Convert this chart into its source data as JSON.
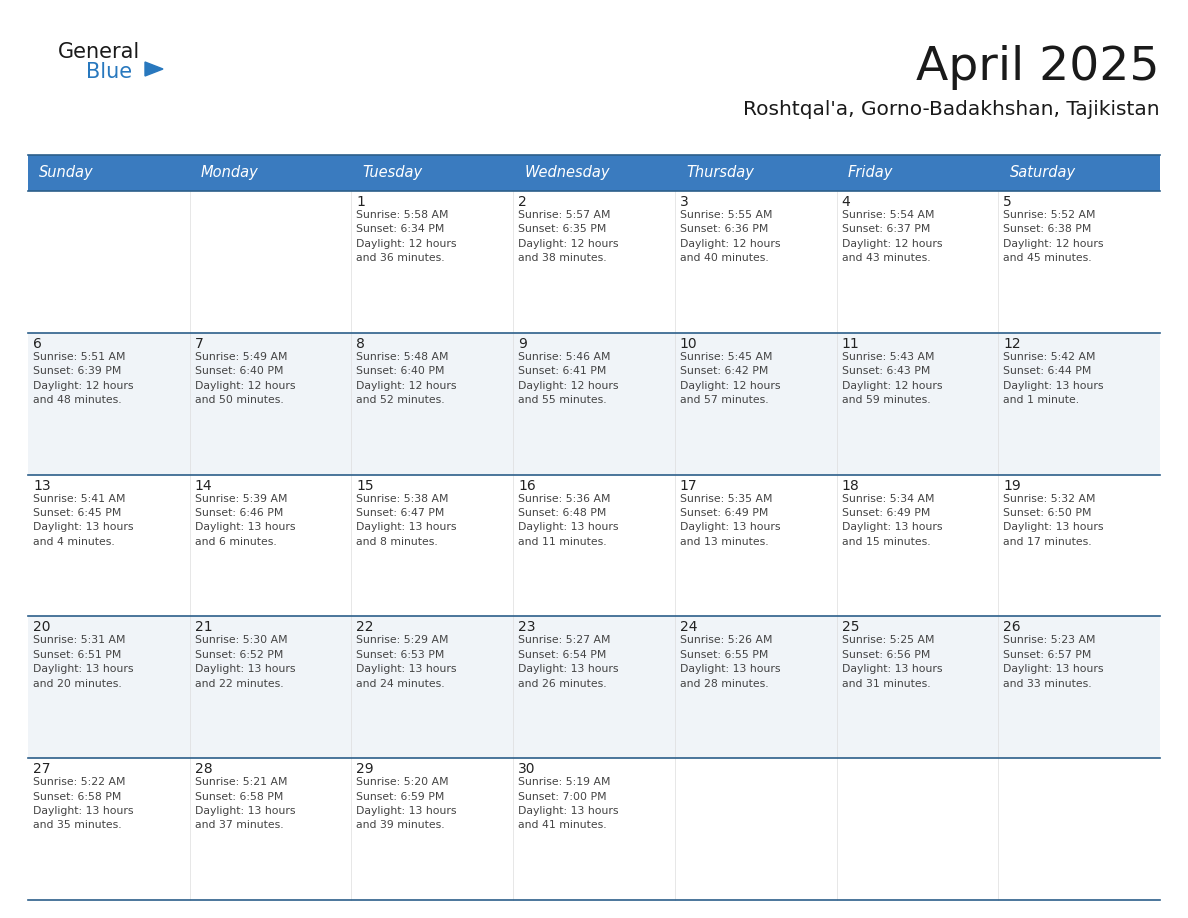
{
  "title": "April 2025",
  "subtitle": "Roshtqal'a, Gorno-Badakhshan, Tajikistan",
  "days_of_week": [
    "Sunday",
    "Monday",
    "Tuesday",
    "Wednesday",
    "Thursday",
    "Friday",
    "Saturday"
  ],
  "header_bg": "#3a7bbf",
  "header_fg": "#ffffff",
  "row_bg_colors": [
    "#ffffff",
    "#f0f4f8",
    "#ffffff",
    "#f0f4f8",
    "#ffffff"
  ],
  "separator_color": "#2c5f8a",
  "title_color": "#1a1a1a",
  "subtitle_color": "#1a1a1a",
  "day_num_color": "#222222",
  "cell_text_color": "#444444",
  "logo_general_color": "#1a1a1a",
  "logo_blue_color": "#2878be",
  "calendar_data": [
    [
      {
        "day": null,
        "info": null
      },
      {
        "day": null,
        "info": null
      },
      {
        "day": 1,
        "info": "Sunrise: 5:58 AM\nSunset: 6:34 PM\nDaylight: 12 hours\nand 36 minutes."
      },
      {
        "day": 2,
        "info": "Sunrise: 5:57 AM\nSunset: 6:35 PM\nDaylight: 12 hours\nand 38 minutes."
      },
      {
        "day": 3,
        "info": "Sunrise: 5:55 AM\nSunset: 6:36 PM\nDaylight: 12 hours\nand 40 minutes."
      },
      {
        "day": 4,
        "info": "Sunrise: 5:54 AM\nSunset: 6:37 PM\nDaylight: 12 hours\nand 43 minutes."
      },
      {
        "day": 5,
        "info": "Sunrise: 5:52 AM\nSunset: 6:38 PM\nDaylight: 12 hours\nand 45 minutes."
      }
    ],
    [
      {
        "day": 6,
        "info": "Sunrise: 5:51 AM\nSunset: 6:39 PM\nDaylight: 12 hours\nand 48 minutes."
      },
      {
        "day": 7,
        "info": "Sunrise: 5:49 AM\nSunset: 6:40 PM\nDaylight: 12 hours\nand 50 minutes."
      },
      {
        "day": 8,
        "info": "Sunrise: 5:48 AM\nSunset: 6:40 PM\nDaylight: 12 hours\nand 52 minutes."
      },
      {
        "day": 9,
        "info": "Sunrise: 5:46 AM\nSunset: 6:41 PM\nDaylight: 12 hours\nand 55 minutes."
      },
      {
        "day": 10,
        "info": "Sunrise: 5:45 AM\nSunset: 6:42 PM\nDaylight: 12 hours\nand 57 minutes."
      },
      {
        "day": 11,
        "info": "Sunrise: 5:43 AM\nSunset: 6:43 PM\nDaylight: 12 hours\nand 59 minutes."
      },
      {
        "day": 12,
        "info": "Sunrise: 5:42 AM\nSunset: 6:44 PM\nDaylight: 13 hours\nand 1 minute."
      }
    ],
    [
      {
        "day": 13,
        "info": "Sunrise: 5:41 AM\nSunset: 6:45 PM\nDaylight: 13 hours\nand 4 minutes."
      },
      {
        "day": 14,
        "info": "Sunrise: 5:39 AM\nSunset: 6:46 PM\nDaylight: 13 hours\nand 6 minutes."
      },
      {
        "day": 15,
        "info": "Sunrise: 5:38 AM\nSunset: 6:47 PM\nDaylight: 13 hours\nand 8 minutes."
      },
      {
        "day": 16,
        "info": "Sunrise: 5:36 AM\nSunset: 6:48 PM\nDaylight: 13 hours\nand 11 minutes."
      },
      {
        "day": 17,
        "info": "Sunrise: 5:35 AM\nSunset: 6:49 PM\nDaylight: 13 hours\nand 13 minutes."
      },
      {
        "day": 18,
        "info": "Sunrise: 5:34 AM\nSunset: 6:49 PM\nDaylight: 13 hours\nand 15 minutes."
      },
      {
        "day": 19,
        "info": "Sunrise: 5:32 AM\nSunset: 6:50 PM\nDaylight: 13 hours\nand 17 minutes."
      }
    ],
    [
      {
        "day": 20,
        "info": "Sunrise: 5:31 AM\nSunset: 6:51 PM\nDaylight: 13 hours\nand 20 minutes."
      },
      {
        "day": 21,
        "info": "Sunrise: 5:30 AM\nSunset: 6:52 PM\nDaylight: 13 hours\nand 22 minutes."
      },
      {
        "day": 22,
        "info": "Sunrise: 5:29 AM\nSunset: 6:53 PM\nDaylight: 13 hours\nand 24 minutes."
      },
      {
        "day": 23,
        "info": "Sunrise: 5:27 AM\nSunset: 6:54 PM\nDaylight: 13 hours\nand 26 minutes."
      },
      {
        "day": 24,
        "info": "Sunrise: 5:26 AM\nSunset: 6:55 PM\nDaylight: 13 hours\nand 28 minutes."
      },
      {
        "day": 25,
        "info": "Sunrise: 5:25 AM\nSunset: 6:56 PM\nDaylight: 13 hours\nand 31 minutes."
      },
      {
        "day": 26,
        "info": "Sunrise: 5:23 AM\nSunset: 6:57 PM\nDaylight: 13 hours\nand 33 minutes."
      }
    ],
    [
      {
        "day": 27,
        "info": "Sunrise: 5:22 AM\nSunset: 6:58 PM\nDaylight: 13 hours\nand 35 minutes."
      },
      {
        "day": 28,
        "info": "Sunrise: 5:21 AM\nSunset: 6:58 PM\nDaylight: 13 hours\nand 37 minutes."
      },
      {
        "day": 29,
        "info": "Sunrise: 5:20 AM\nSunset: 6:59 PM\nDaylight: 13 hours\nand 39 minutes."
      },
      {
        "day": 30,
        "info": "Sunrise: 5:19 AM\nSunset: 7:00 PM\nDaylight: 13 hours\nand 41 minutes."
      },
      {
        "day": null,
        "info": null
      },
      {
        "day": null,
        "info": null
      },
      {
        "day": null,
        "info": null
      }
    ]
  ]
}
